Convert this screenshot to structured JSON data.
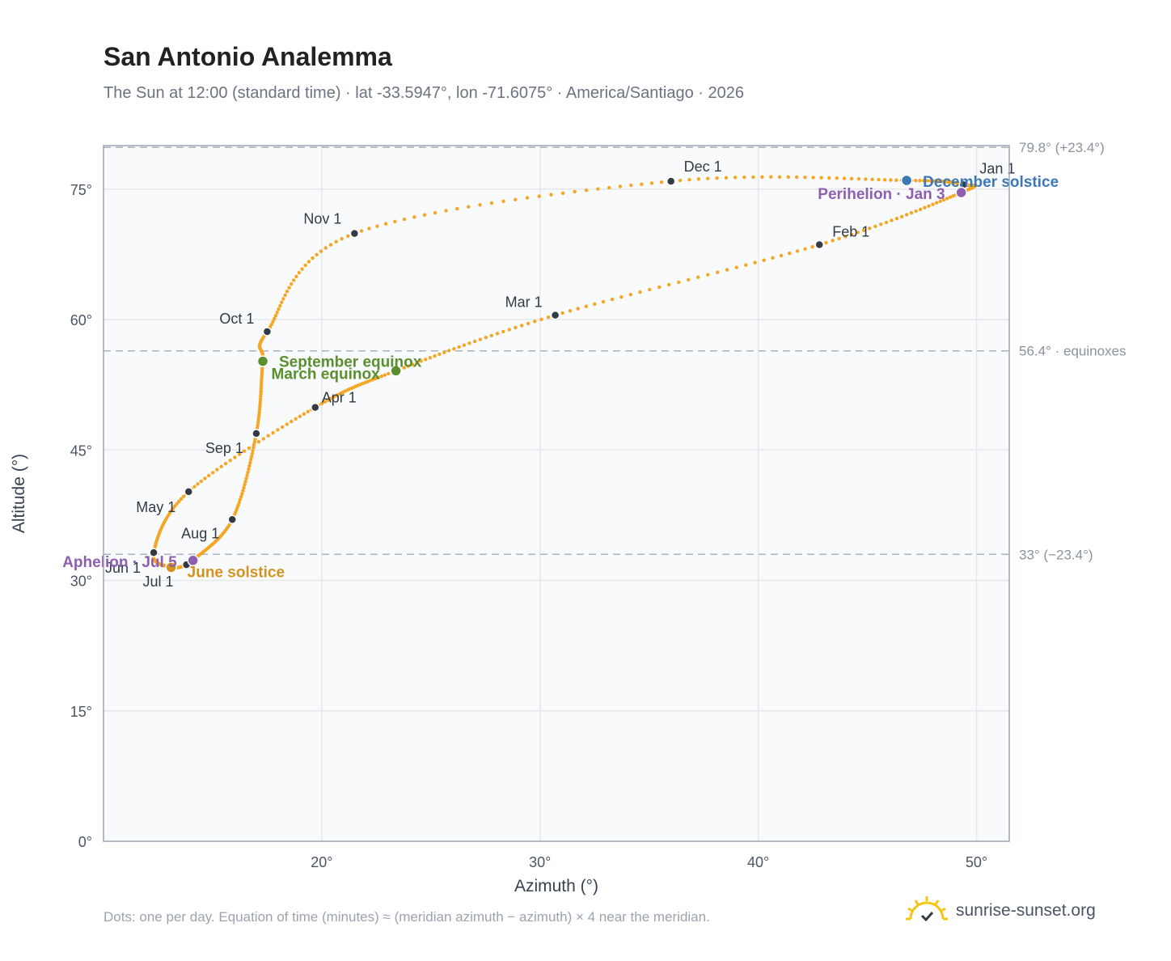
{
  "header": {
    "title": "San Antonio Analemma",
    "subtitle": "The Sun at 12:00 (standard time) · lat -33.5947°, lon -71.6075° · America/Santiago · 2026"
  },
  "footer": {
    "note": "Dots: one per day. Equation of time (minutes) ≈ (meridian azimuth − azimuth) × 4 near the meridian.",
    "brand": "sunrise-sunset.org"
  },
  "colors": {
    "curve": "#f5a623",
    "month_marker": "#333a44",
    "equinox": "#5a8f2e",
    "december_solstice": "#3b78b5",
    "june_solstice": "#d4921e",
    "apsis": "#8e5fb0",
    "reference_line": "#aab4c0"
  },
  "chart_data": {
    "type": "scatter",
    "xlabel": "Azimuth (°)",
    "ylabel": "Altitude (°)",
    "xlim": [
      10,
      51.5
    ],
    "ylim": [
      0,
      80
    ],
    "x_ticks": [
      20,
      30,
      40,
      50
    ],
    "x_tick_labels": [
      "20°",
      "30°",
      "40°",
      "50°"
    ],
    "y_ticks": [
      0,
      15,
      30,
      45,
      60,
      75
    ],
    "y_tick_labels": [
      "0°",
      "15°",
      "30°",
      "45°",
      "60°",
      "75°"
    ],
    "grid": true,
    "reference_lines": [
      {
        "altitude": 79.8,
        "label": "79.8° (+23.4°)"
      },
      {
        "altitude": 56.4,
        "label": "56.4° · equinoxes"
      },
      {
        "altitude": 33.0,
        "label": "33° (−23.4°)"
      }
    ],
    "analemma_path": [
      {
        "date": "Jan 1",
        "az": 49.4,
        "alt": 75.5
      },
      {
        "date": "Jan 3",
        "az": 49.3,
        "alt": 74.6
      },
      {
        "date": "Feb 1",
        "az": 42.8,
        "alt": 68.6
      },
      {
        "date": "Mar 1",
        "az": 30.7,
        "alt": 60.5
      },
      {
        "date": "Mar 20",
        "az": 23.4,
        "alt": 54.1
      },
      {
        "date": "Apr 1",
        "az": 19.7,
        "alt": 49.9
      },
      {
        "date": "May 1",
        "az": 13.9,
        "alt": 40.2
      },
      {
        "date": "Jun 1",
        "az": 12.3,
        "alt": 33.2
      },
      {
        "date": "Jun 21",
        "az": 13.1,
        "alt": 31.5
      },
      {
        "date": "Jul 1",
        "az": 13.8,
        "alt": 31.8
      },
      {
        "date": "Jul 5",
        "az": 14.1,
        "alt": 32.3
      },
      {
        "date": "Aug 1",
        "az": 15.9,
        "alt": 37.0
      },
      {
        "date": "Sep 1",
        "az": 17.0,
        "alt": 46.9
      },
      {
        "date": "Sep 22",
        "az": 17.3,
        "alt": 55.2
      },
      {
        "date": "Oct 1",
        "az": 17.5,
        "alt": 58.6
      },
      {
        "date": "Nov 1",
        "az": 21.5,
        "alt": 69.9
      },
      {
        "date": "Dec 1",
        "az": 36.0,
        "alt": 75.9
      },
      {
        "date": "Dec 21",
        "az": 46.8,
        "alt": 76.0
      },
      {
        "date": "Jan 1",
        "az": 49.4,
        "alt": 75.5
      }
    ],
    "month_markers": [
      {
        "label": "Jan 1",
        "az": 49.4,
        "alt": 75.5
      },
      {
        "label": "Feb 1",
        "az": 42.8,
        "alt": 68.6
      },
      {
        "label": "Mar 1",
        "az": 30.7,
        "alt": 60.5
      },
      {
        "label": "Apr 1",
        "az": 19.7,
        "alt": 49.9
      },
      {
        "label": "May 1",
        "az": 13.9,
        "alt": 40.2
      },
      {
        "label": "Jun 1",
        "az": 12.3,
        "alt": 33.2
      },
      {
        "label": "Jul 1",
        "az": 13.8,
        "alt": 31.8
      },
      {
        "label": "Aug 1",
        "az": 15.9,
        "alt": 37.0
      },
      {
        "label": "Sep 1",
        "az": 17.0,
        "alt": 46.9
      },
      {
        "label": "Oct 1",
        "az": 17.5,
        "alt": 58.6
      },
      {
        "label": "Nov 1",
        "az": 21.5,
        "alt": 69.9
      },
      {
        "label": "Dec 1",
        "az": 36.0,
        "alt": 75.9
      }
    ],
    "events": [
      {
        "label": "March equinox",
        "az": 23.4,
        "alt": 54.1,
        "color_key": "equinox"
      },
      {
        "label": "September equinox",
        "az": 17.3,
        "alt": 55.2,
        "color_key": "equinox"
      },
      {
        "label": "June solstice",
        "az": 13.1,
        "alt": 31.5,
        "color_key": "june_solstice"
      },
      {
        "label": "December solstice",
        "az": 46.8,
        "alt": 76.0,
        "color_key": "december_solstice"
      },
      {
        "label": "Perihelion · Jan 3",
        "az": 49.3,
        "alt": 74.6,
        "color_key": "apsis"
      },
      {
        "label": "Aphelion · Jul 5",
        "az": 14.1,
        "alt": 32.3,
        "color_key": "apsis"
      }
    ]
  }
}
